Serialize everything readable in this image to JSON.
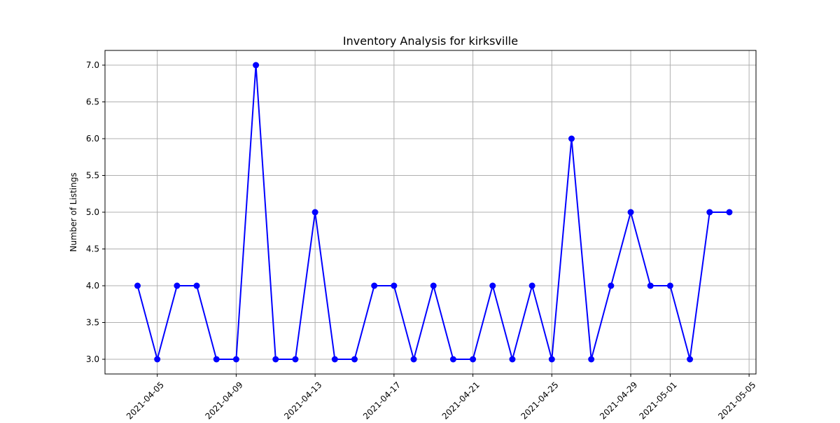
{
  "chart_data": {
    "type": "line",
    "title": "Inventory Analysis for kirksville",
    "xlabel": "",
    "ylabel": "Number of Listings",
    "x": [
      "2021-04-04",
      "2021-04-05",
      "2021-04-06",
      "2021-04-07",
      "2021-04-08",
      "2021-04-09",
      "2021-04-10",
      "2021-04-11",
      "2021-04-12",
      "2021-04-13",
      "2021-04-14",
      "2021-04-15",
      "2021-04-16",
      "2021-04-17",
      "2021-04-18",
      "2021-04-19",
      "2021-04-20",
      "2021-04-21",
      "2021-04-22",
      "2021-04-23",
      "2021-04-24",
      "2021-04-25",
      "2021-04-26",
      "2021-04-27",
      "2021-04-28",
      "2021-04-29",
      "2021-04-30",
      "2021-05-01",
      "2021-05-02",
      "2021-05-03",
      "2021-05-04"
    ],
    "series": [
      {
        "values": [
          4,
          3,
          4,
          4,
          3,
          3,
          7,
          3,
          3,
          5,
          3,
          3,
          4,
          4,
          3,
          4,
          3,
          3,
          4,
          3,
          4,
          3,
          6,
          3,
          4,
          5,
          4,
          4,
          3,
          5,
          5
        ],
        "color": "#0000ff",
        "marker": "circle"
      }
    ],
    "xticks": [
      "2021-04-05",
      "2021-04-09",
      "2021-04-13",
      "2021-04-17",
      "2021-04-21",
      "2021-04-25",
      "2021-04-29",
      "2021-05-01",
      "2021-05-05"
    ],
    "yticks": [
      "3.0",
      "3.5",
      "4.0",
      "4.5",
      "5.0",
      "5.5",
      "6.0",
      "6.5",
      "7.0"
    ],
    "xlim": [
      "2021-04-02.5",
      "2021-05-05.5"
    ],
    "ylim": [
      2.8,
      7.2
    ],
    "grid": true
  }
}
